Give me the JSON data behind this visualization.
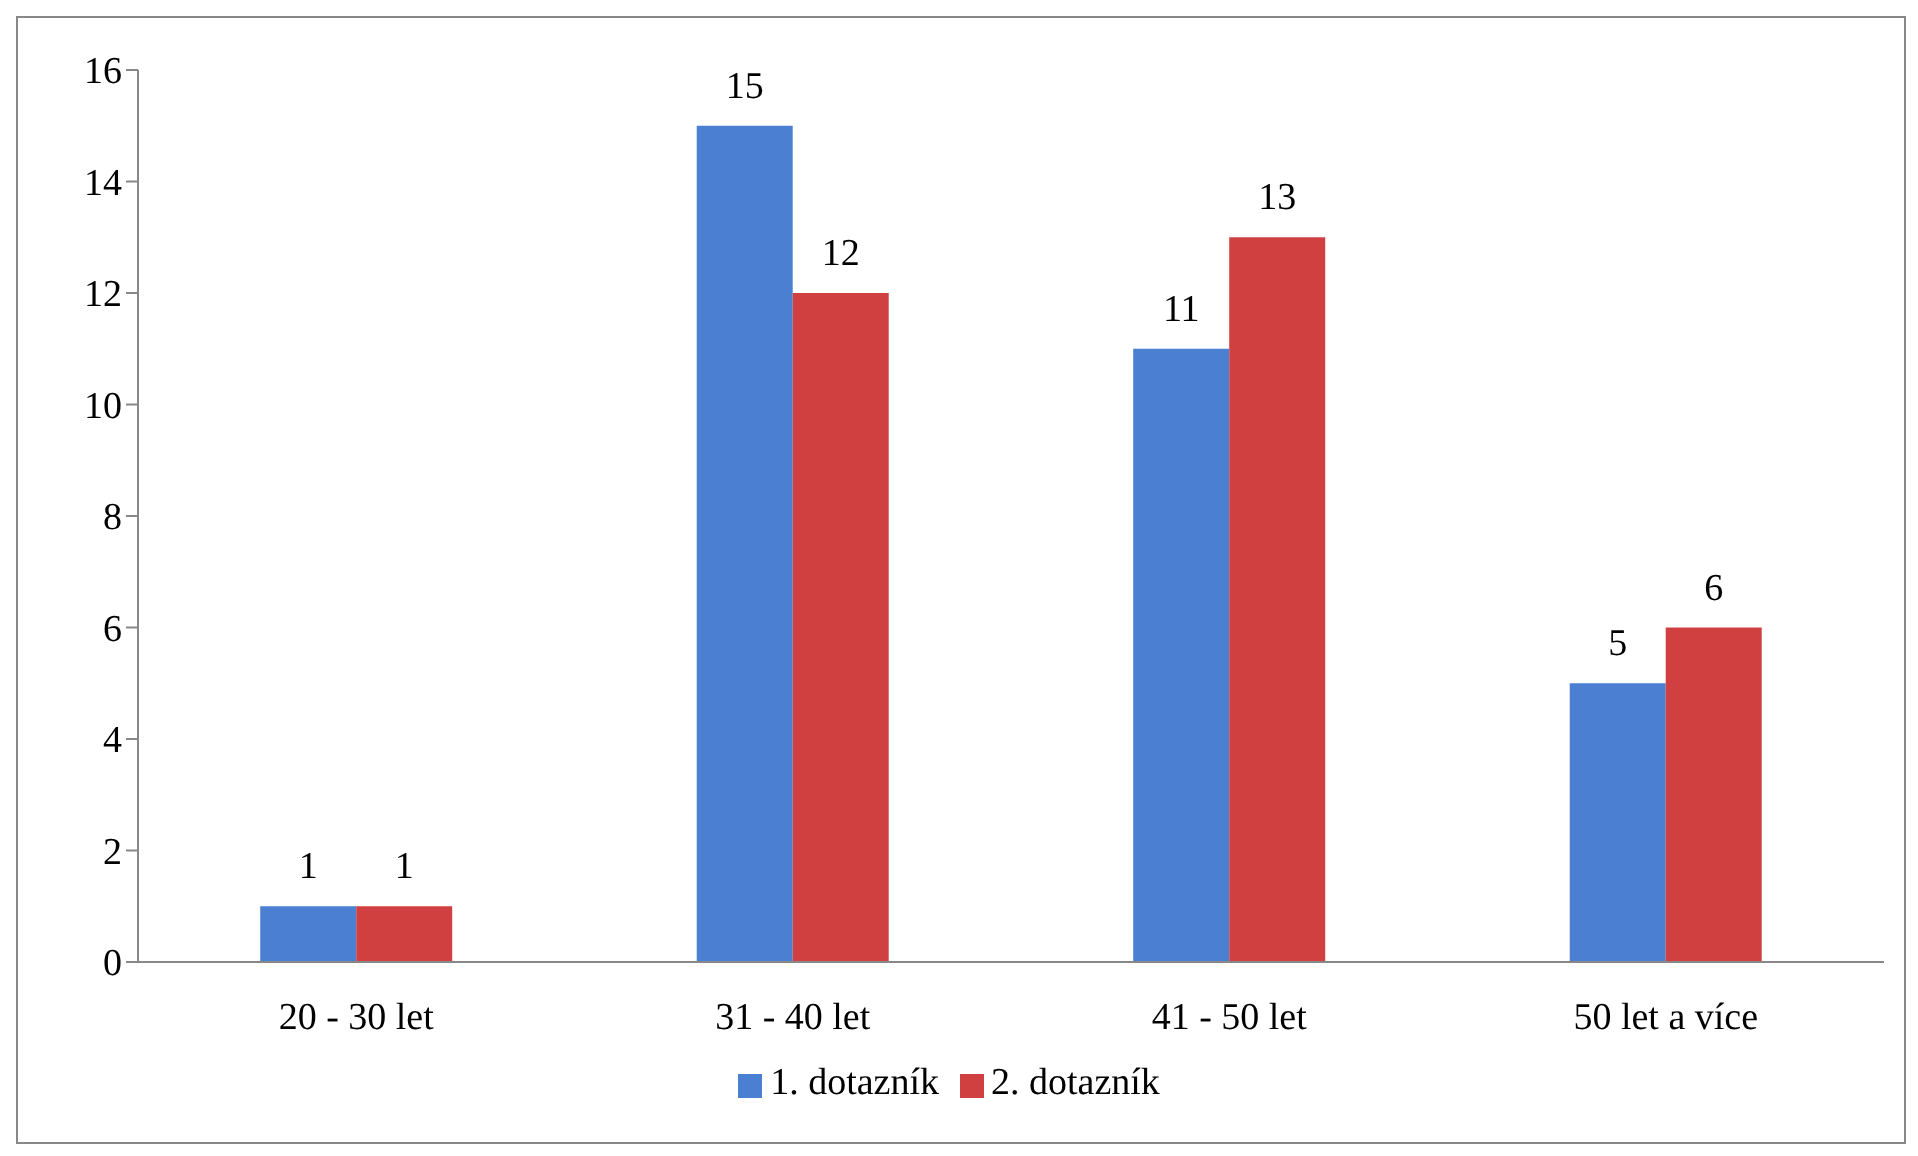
{
  "chart_data": {
    "type": "bar",
    "categories": [
      "20 - 30 let",
      "31 - 40 let",
      "41 - 50 let",
      "50 let a více"
    ],
    "series": [
      {
        "name": "1. dotazník",
        "color": "#4a7fd2",
        "values": [
          1,
          15,
          11,
          5
        ]
      },
      {
        "name": "2. dotazník",
        "color": "#d04040",
        "values": [
          1,
          12,
          13,
          6
        ]
      }
    ],
    "ylim": [
      0,
      16
    ],
    "yticks": [
      0,
      2,
      4,
      6,
      8,
      10,
      12,
      14,
      16
    ],
    "grid": false,
    "legend": "bottom",
    "data_labels": true
  }
}
